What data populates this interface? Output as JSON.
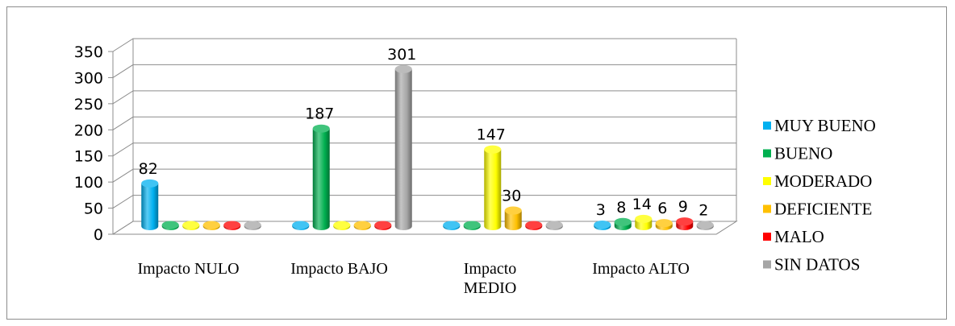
{
  "chart_data": {
    "type": "bar",
    "categories": [
      [
        "Impacto NULO"
      ],
      [
        "Impacto BAJO"
      ],
      [
        "Impacto",
        "MEDIO"
      ],
      [
        "Impacto ALTO"
      ]
    ],
    "series": [
      {
        "name": "MUY BUENO",
        "color": "#00b0f0",
        "values": [
          82,
          0,
          0,
          3
        ]
      },
      {
        "name": "BUENO",
        "color": "#00b050",
        "values": [
          0,
          187,
          0,
          8
        ]
      },
      {
        "name": "MODERADO",
        "color": "#ffff00",
        "values": [
          0,
          0,
          147,
          14
        ]
      },
      {
        "name": "DEFICIENTE",
        "color": "#ffc000",
        "values": [
          0,
          0,
          30,
          6
        ]
      },
      {
        "name": "MALO",
        "color": "#ff0000",
        "values": [
          0,
          0,
          0,
          9
        ]
      },
      {
        "name": "SIN DATOS",
        "color": "#a6a6a6",
        "values": [
          0,
          301,
          0,
          2
        ]
      }
    ],
    "data_labels": [
      {
        "category": 0,
        "series": 0,
        "text": "82"
      },
      {
        "category": 1,
        "series": 1,
        "text": "187"
      },
      {
        "category": 1,
        "series": 5,
        "text": "301"
      },
      {
        "category": 2,
        "series": 2,
        "text": "147"
      },
      {
        "category": 2,
        "series": 3,
        "text": "30"
      },
      {
        "category": 3,
        "series": 0,
        "text": "3"
      },
      {
        "category": 3,
        "series": 1,
        "text": "8"
      },
      {
        "category": 3,
        "series": 2,
        "text": "14"
      },
      {
        "category": 3,
        "series": 3,
        "text": "6"
      },
      {
        "category": 3,
        "series": 4,
        "text": "9"
      },
      {
        "category": 3,
        "series": 5,
        "text": "2"
      }
    ],
    "y_ticks": [
      "0",
      "50",
      "100",
      "150",
      "200",
      "250",
      "300",
      "350"
    ],
    "ylim": [
      0,
      350
    ],
    "grid": true,
    "legend_position": "right",
    "title": "",
    "xlabel": "",
    "ylabel": ""
  }
}
